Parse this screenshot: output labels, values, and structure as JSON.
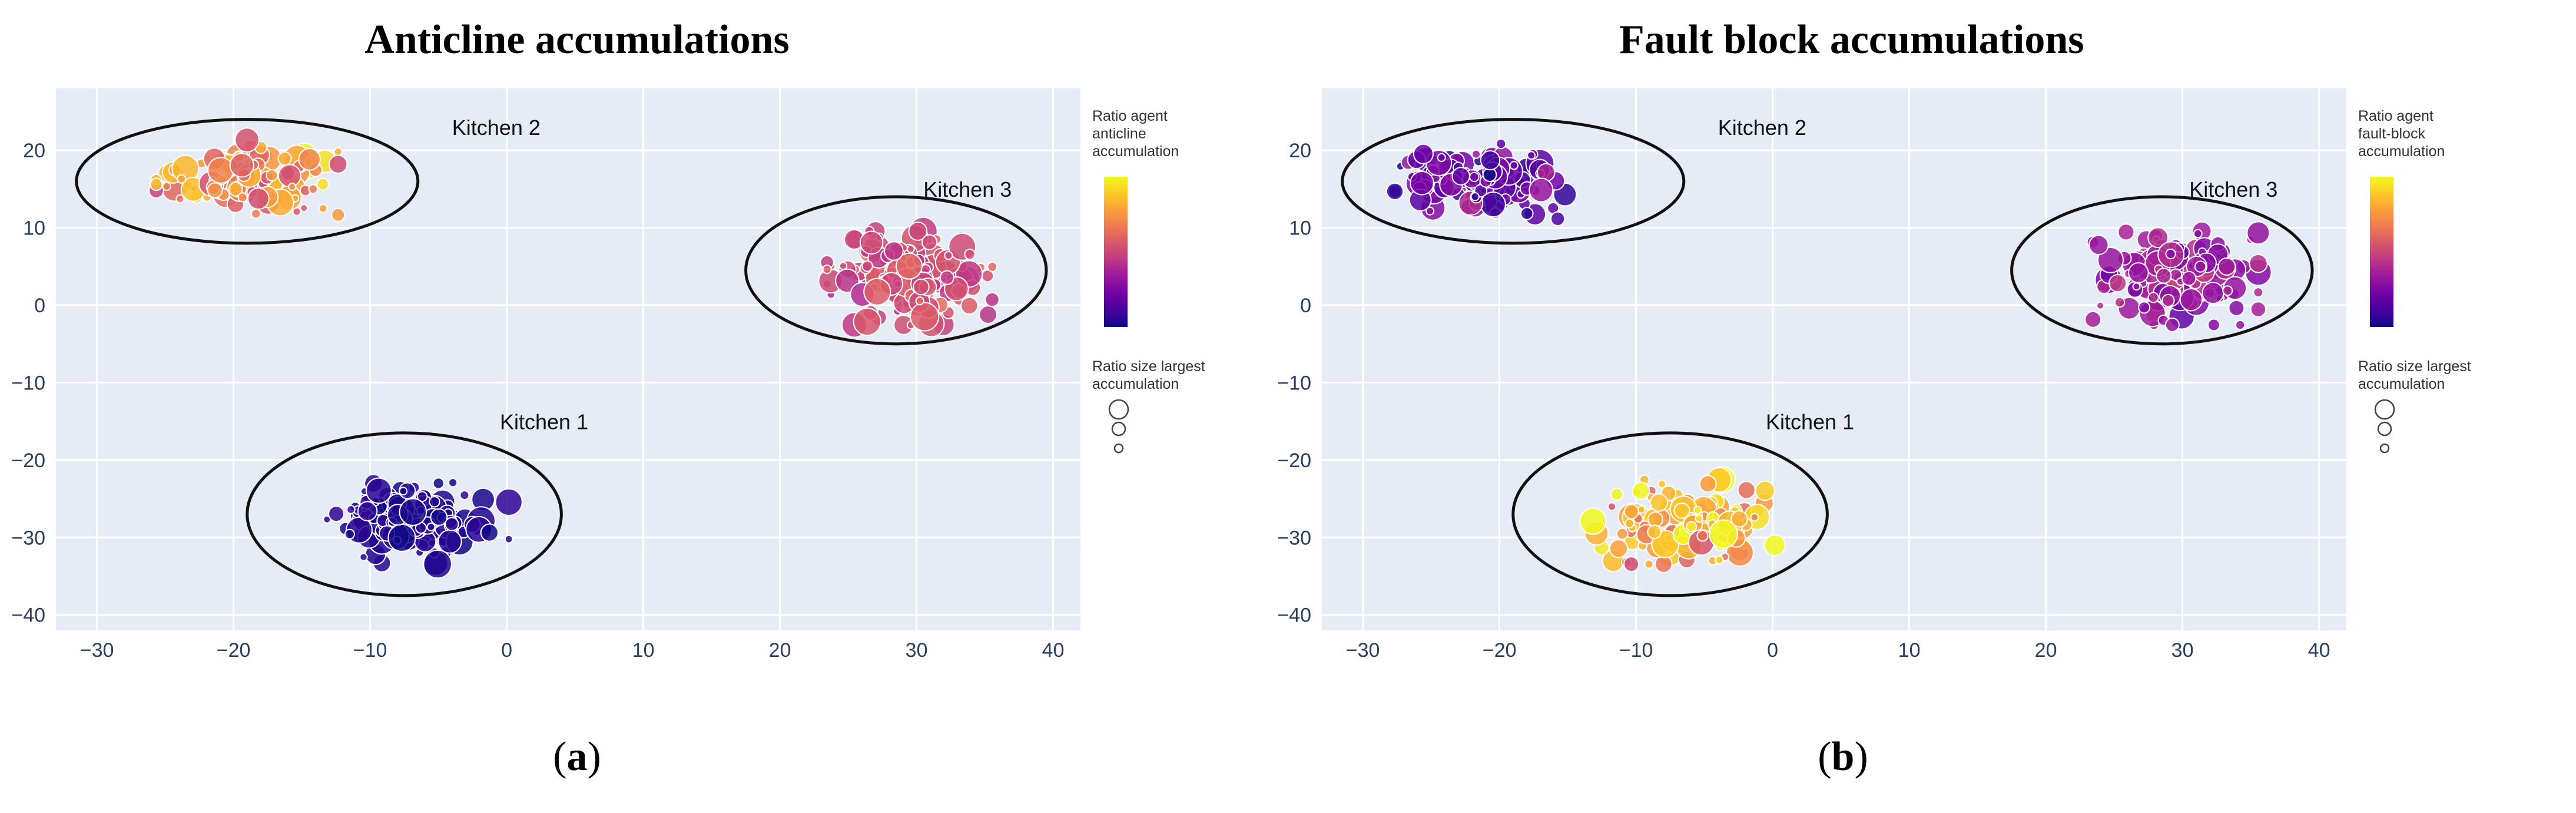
{
  "figure": {
    "panels": [
      {
        "title": "Anticline accumulations",
        "label_letter": "a",
        "colorbar_title": [
          "Ratio agent",
          "anticline",
          "accumulation"
        ],
        "size_legend_title": [
          "Ratio size largest",
          "accumulation"
        ]
      },
      {
        "title": "Fault block accumulations",
        "label_letter": "b",
        "colorbar_title": [
          "Ratio agent",
          "fault-block",
          "accumulation"
        ],
        "size_legend_title": [
          "Ratio size largest",
          "accumulation"
        ]
      }
    ]
  },
  "colors": {
    "plot_bg": "#e5ecf6",
    "grid": "#ffffff",
    "scale": [
      "#0d0887",
      "#46039f",
      "#7201a8",
      "#9c179e",
      "#bd3786",
      "#d8576b",
      "#ed7953",
      "#fb9f3a",
      "#fdca26",
      "#f0f921"
    ]
  },
  "chart_data": [
    {
      "type": "scatter",
      "title": "Anticline accumulations",
      "xlabel": "",
      "ylabel": "",
      "xlim": [
        -33,
        42
      ],
      "ylim": [
        -42,
        28
      ],
      "xticks": [
        -30,
        -20,
        -10,
        0,
        10,
        20,
        30,
        40
      ],
      "yticks": [
        -40,
        -30,
        -20,
        -10,
        0,
        10,
        20
      ],
      "color_range": [
        0,
        1
      ],
      "clusters": [
        {
          "name": "Kitchen 2",
          "center": [
            -19,
            16.5
          ],
          "spread": [
            5.5,
            4
          ],
          "count": 130,
          "color_value": 0.72,
          "color_spread": 0.12,
          "ellipse": {
            "cx": -19,
            "cy": 16,
            "rx": 12.5,
            "ry": 8
          },
          "label_at": [
            -4,
            22
          ]
        },
        {
          "name": "Kitchen 3",
          "center": [
            29.5,
            3.5
          ],
          "spread": [
            5,
            5
          ],
          "count": 150,
          "color_value": 0.52,
          "color_spread": 0.06,
          "ellipse": {
            "cx": 28.5,
            "cy": 4.5,
            "rx": 11,
            "ry": 9.5
          },
          "label_at": [
            30.5,
            14
          ]
        },
        {
          "name": "Kitchen 1",
          "center": [
            -6.5,
            -28
          ],
          "spread": [
            5.5,
            4.5
          ],
          "count": 150,
          "color_value": 0.04,
          "color_spread": 0.02,
          "ellipse": {
            "cx": -7.5,
            "cy": -27,
            "rx": 11.5,
            "ry": 10.5
          },
          "label_at": [
            -0.5,
            -16
          ]
        }
      ]
    },
    {
      "type": "scatter",
      "title": "Fault block accumulations",
      "xlabel": "",
      "ylabel": "",
      "xlim": [
        -33,
        42
      ],
      "ylim": [
        -42,
        28
      ],
      "xticks": [
        -30,
        -20,
        -10,
        0,
        10,
        20,
        30,
        40
      ],
      "yticks": [
        -40,
        -30,
        -20,
        -10,
        0,
        10,
        20
      ],
      "color_range": [
        0,
        1
      ],
      "clusters": [
        {
          "name": "Kitchen 2",
          "center": [
            -21,
            16
          ],
          "spread": [
            5.5,
            4
          ],
          "count": 130,
          "color_value": 0.2,
          "color_spread": 0.08,
          "ellipse": {
            "cx": -19,
            "cy": 16,
            "rx": 12.5,
            "ry": 8
          },
          "label_at": [
            -4,
            22
          ]
        },
        {
          "name": "Kitchen 3",
          "center": [
            29.5,
            3.5
          ],
          "spread": [
            5,
            5
          ],
          "count": 150,
          "color_value": 0.34,
          "color_spread": 0.08,
          "ellipse": {
            "cx": 28.5,
            "cy": 4.5,
            "rx": 11,
            "ry": 9.5
          },
          "label_at": [
            30.5,
            14
          ]
        },
        {
          "name": "Kitchen 1",
          "center": [
            -6.5,
            -28
          ],
          "spread": [
            5.5,
            4.5
          ],
          "count": 150,
          "color_value": 0.85,
          "color_spread": 0.12,
          "ellipse": {
            "cx": -7.5,
            "cy": -27,
            "rx": 11.5,
            "ry": 10.5
          },
          "label_at": [
            -0.5,
            -16
          ]
        }
      ]
    }
  ]
}
